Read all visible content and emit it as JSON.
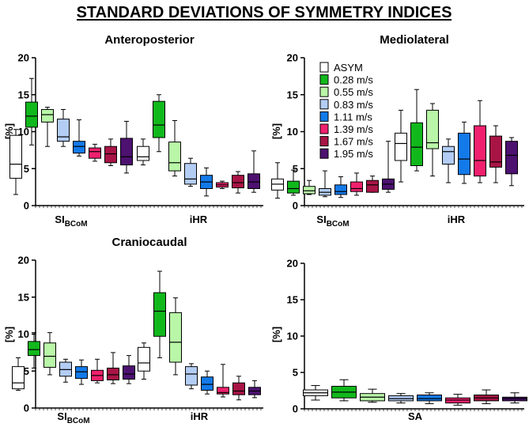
{
  "title": "STANDARD DEVIATIONS OF SYMMETRY INDICES",
  "colors": {
    "ASYM": "#ffffff",
    "0.28 m/s": "#11b81c",
    "0.55 m/s": "#b9f6a8",
    "0.83 m/s": "#b3cdf4",
    "1.11 m/s": "#137ae9",
    "1.39 m/s": "#f0206e",
    "1.67 m/s": "#a81446",
    "1.95 m/s": "#4d1170"
  },
  "legend": [
    "ASYM",
    "0.28 m/s",
    "0.55 m/s",
    "0.83 m/s",
    "1.11 m/s",
    "1.39 m/s",
    "1.67 m/s",
    "1.95 m/s"
  ],
  "chart_data": [
    {
      "type": "box",
      "title": "Anteroposterior",
      "ylabel": "[%]",
      "ylim": [
        0,
        20
      ],
      "yticks": [
        0,
        5,
        10,
        15,
        20
      ],
      "groups": [
        {
          "label_main": "SI",
          "label_sub": "BCoM",
          "boxes": [
            {
              "name": "ASYM",
              "min": 1.5,
              "q1": 3.7,
              "median": 5.6,
              "q3": 9.5,
              "max": 10.3
            },
            {
              "name": "0.28 m/s",
              "min": 8.2,
              "q1": 10.6,
              "median": 12.1,
              "q3": 14.0,
              "max": 17.2
            },
            {
              "name": "0.55 m/s",
              "min": 8.0,
              "q1": 11.3,
              "median": 12.3,
              "q3": 13.0,
              "max": 13.3
            },
            {
              "name": "0.83 m/s",
              "min": 8.0,
              "q1": 8.7,
              "median": 9.3,
              "q3": 11.7,
              "max": 13.0
            },
            {
              "name": "1.11 m/s",
              "min": 6.7,
              "q1": 7.1,
              "median": 8.0,
              "q3": 8.7,
              "max": 11.6
            },
            {
              "name": "1.39 m/s",
              "min": 6.0,
              "q1": 6.4,
              "median": 7.3,
              "q3": 7.8,
              "max": 8.3
            },
            {
              "name": "1.67 m/s",
              "min": 5.4,
              "q1": 5.8,
              "median": 7.0,
              "q3": 8.0,
              "max": 9.0
            },
            {
              "name": "1.95 m/s",
              "min": 4.4,
              "q1": 5.5,
              "median": 6.6,
              "q3": 9.1,
              "max": 11.4
            }
          ]
        },
        {
          "label_main": "iHR",
          "label_sub": "",
          "boxes": [
            {
              "name": "ASYM",
              "min": 5.5,
              "q1": 6.1,
              "median": 6.6,
              "q3": 8.0,
              "max": 9.0
            },
            {
              "name": "0.28 m/s",
              "min": 7.3,
              "q1": 9.2,
              "median": 10.9,
              "q3": 14.1,
              "max": 15.0
            },
            {
              "name": "0.55 m/s",
              "min": 4.0,
              "q1": 4.7,
              "median": 5.8,
              "q3": 8.6,
              "max": 11.5
            },
            {
              "name": "0.83 m/s",
              "min": 2.6,
              "q1": 2.9,
              "median": 3.6,
              "q3": 5.7,
              "max": 6.4
            },
            {
              "name": "1.11 m/s",
              "min": 1.3,
              "q1": 2.3,
              "median": 3.2,
              "q3": 4.1,
              "max": 5.1
            },
            {
              "name": "1.39 m/s",
              "min": 2.3,
              "q1": 2.5,
              "median": 2.8,
              "q3": 3.1,
              "max": 3.3
            },
            {
              "name": "1.67 m/s",
              "min": 1.7,
              "q1": 2.4,
              "median": 3.1,
              "q3": 4.1,
              "max": 4.6
            },
            {
              "name": "1.95 m/s",
              "min": 1.8,
              "q1": 2.3,
              "median": 3.2,
              "q3": 4.3,
              "max": 7.4
            }
          ]
        }
      ]
    },
    {
      "type": "box",
      "title": "Mediolateral",
      "ylabel": "[%]",
      "ylim": [
        0,
        20
      ],
      "yticks": [
        0,
        5,
        10,
        15,
        20
      ],
      "legend": true,
      "groups": [
        {
          "label_main": "SI",
          "label_sub": "BCoM",
          "boxes": [
            {
              "name": "ASYM",
              "min": 1.0,
              "q1": 2.1,
              "median": 2.9,
              "q3": 3.6,
              "max": 5.8
            },
            {
              "name": "0.28 m/s",
              "min": 1.4,
              "q1": 1.7,
              "median": 2.3,
              "q3": 3.3,
              "max": 4.8
            },
            {
              "name": "0.55 m/s",
              "min": 1.5,
              "q1": 1.6,
              "median": 2.0,
              "q3": 2.6,
              "max": 3.4
            },
            {
              "name": "0.83 m/s",
              "min": 1.2,
              "q1": 1.4,
              "median": 1.8,
              "q3": 2.3,
              "max": 4.7
            },
            {
              "name": "1.11 m/s",
              "min": 1.1,
              "q1": 1.5,
              "median": 1.9,
              "q3": 2.8,
              "max": 3.9
            },
            {
              "name": "1.39 m/s",
              "min": 1.4,
              "q1": 1.9,
              "median": 2.3,
              "q3": 3.2,
              "max": 4.4
            },
            {
              "name": "1.67 m/s",
              "min": 1.8,
              "q1": 1.8,
              "median": 2.8,
              "q3": 3.4,
              "max": 4.0
            },
            {
              "name": "1.95 m/s",
              "min": 1.8,
              "q1": 2.2,
              "median": 2.9,
              "q3": 3.6,
              "max": 8.7
            }
          ]
        },
        {
          "label_main": "iHR",
          "label_sub": "",
          "boxes": [
            {
              "name": "ASYM",
              "min": 3.2,
              "q1": 6.1,
              "median": 8.4,
              "q3": 9.8,
              "max": 12.9
            },
            {
              "name": "0.28 m/s",
              "min": 4.7,
              "q1": 5.4,
              "median": 7.9,
              "q3": 11.2,
              "max": 15.7
            },
            {
              "name": "0.55 m/s",
              "min": 4.0,
              "q1": 7.7,
              "median": 8.5,
              "q3": 12.9,
              "max": 13.8
            },
            {
              "name": "0.83 m/s",
              "min": 3.1,
              "q1": 5.6,
              "median": 7.3,
              "q3": 8.0,
              "max": 9.0
            },
            {
              "name": "1.11 m/s",
              "min": 3.0,
              "q1": 4.2,
              "median": 6.3,
              "q3": 9.8,
              "max": 11.3
            },
            {
              "name": "1.39 m/s",
              "min": 3.1,
              "q1": 4.0,
              "median": 6.1,
              "q3": 10.8,
              "max": 14.2
            },
            {
              "name": "1.67 m/s",
              "min": 3.1,
              "q1": 5.2,
              "median": 5.9,
              "q3": 9.4,
              "max": 10.8
            },
            {
              "name": "1.95 m/s",
              "min": 2.7,
              "q1": 4.3,
              "median": 6.8,
              "q3": 8.7,
              "max": 9.2
            }
          ]
        }
      ]
    },
    {
      "type": "box",
      "title": "Craniocaudal",
      "ylabel": "[%]",
      "ylim": [
        0,
        20
      ],
      "yticks": [
        0,
        5,
        10,
        15,
        20
      ],
      "groups": [
        {
          "label_main": "SI",
          "label_sub": "BCoM",
          "boxes": [
            {
              "name": "ASYM",
              "min": 2.4,
              "q1": 2.6,
              "median": 3.4,
              "q3": 5.6,
              "max": 6.8
            },
            {
              "name": "0.28 m/s",
              "min": 5.4,
              "q1": 7.1,
              "median": 7.9,
              "q3": 9.0,
              "max": 10.2
            },
            {
              "name": "0.55 m/s",
              "min": 4.5,
              "q1": 5.5,
              "median": 7.0,
              "q3": 8.8,
              "max": 10.2
            },
            {
              "name": "0.83 m/s",
              "min": 3.5,
              "q1": 4.3,
              "median": 5.2,
              "q3": 6.2,
              "max": 6.6
            },
            {
              "name": "1.11 m/s",
              "min": 3.2,
              "q1": 4.0,
              "median": 4.9,
              "q3": 5.6,
              "max": 6.5
            },
            {
              "name": "1.39 m/s",
              "min": 3.4,
              "q1": 3.7,
              "median": 4.4,
              "q3": 5.1,
              "max": 6.6
            },
            {
              "name": "1.67 m/s",
              "min": 3.3,
              "q1": 3.8,
              "median": 4.5,
              "q3": 5.4,
              "max": 7.5
            },
            {
              "name": "1.95 m/s",
              "min": 3.3,
              "q1": 3.9,
              "median": 4.6,
              "q3": 5.7,
              "max": 7.1
            }
          ]
        },
        {
          "label_main": "iHR",
          "label_sub": "",
          "boxes": [
            {
              "name": "ASYM",
              "min": 3.9,
              "q1": 5.0,
              "median": 6.1,
              "q3": 8.2,
              "max": 8.8
            },
            {
              "name": "0.28 m/s",
              "min": 6.8,
              "q1": 9.7,
              "median": 13.1,
              "q3": 15.6,
              "max": 18.5
            },
            {
              "name": "0.55 m/s",
              "min": 4.5,
              "q1": 6.2,
              "median": 8.9,
              "q3": 12.9,
              "max": 14.9
            },
            {
              "name": "0.83 m/s",
              "min": 2.6,
              "q1": 3.1,
              "median": 4.6,
              "q3": 5.6,
              "max": 6.0
            },
            {
              "name": "1.11 m/s",
              "min": 1.9,
              "q1": 2.4,
              "median": 3.2,
              "q3": 4.2,
              "max": 5.0
            },
            {
              "name": "1.39 m/s",
              "min": 1.5,
              "q1": 1.9,
              "median": 2.1,
              "q3": 2.8,
              "max": 5.9
            },
            {
              "name": "1.67 m/s",
              "min": 1.1,
              "q1": 1.8,
              "median": 2.3,
              "q3": 3.4,
              "max": 4.3
            },
            {
              "name": "1.95 m/s",
              "min": 1.4,
              "q1": 1.8,
              "median": 2.3,
              "q3": 2.8,
              "max": 3.7
            }
          ]
        }
      ]
    },
    {
      "type": "box",
      "title": "",
      "ylabel": "[%]",
      "ylim": [
        0,
        20
      ],
      "yticks": [
        0,
        5,
        10,
        15,
        20
      ],
      "groups": [
        {
          "label_main": "SA",
          "label_sub": "",
          "boxes": [
            {
              "name": "ASYM",
              "min": 1.2,
              "q1": 1.8,
              "median": 2.2,
              "q3": 2.6,
              "max": 3.2
            },
            {
              "name": "0.28 m/s",
              "min": 1.1,
              "q1": 1.5,
              "median": 2.3,
              "q3": 3.1,
              "max": 4.0
            },
            {
              "name": "0.55 m/s",
              "min": 0.9,
              "q1": 1.1,
              "median": 1.6,
              "q3": 2.1,
              "max": 2.7
            },
            {
              "name": "0.83 m/s",
              "min": 0.8,
              "q1": 1.1,
              "median": 1.4,
              "q3": 1.8,
              "max": 2.1
            },
            {
              "name": "1.11 m/s",
              "min": 0.7,
              "q1": 1.1,
              "median": 1.4,
              "q3": 1.9,
              "max": 2.2
            },
            {
              "name": "1.39 m/s",
              "min": 0.5,
              "q1": 0.8,
              "median": 1.2,
              "q3": 1.5,
              "max": 2.0
            },
            {
              "name": "1.67 m/s",
              "min": 0.7,
              "q1": 1.1,
              "median": 1.5,
              "q3": 1.9,
              "max": 2.6
            },
            {
              "name": "1.95 m/s",
              "min": 0.8,
              "q1": 1.1,
              "median": 1.4,
              "q3": 1.6,
              "max": 2.2
            }
          ]
        }
      ]
    }
  ]
}
